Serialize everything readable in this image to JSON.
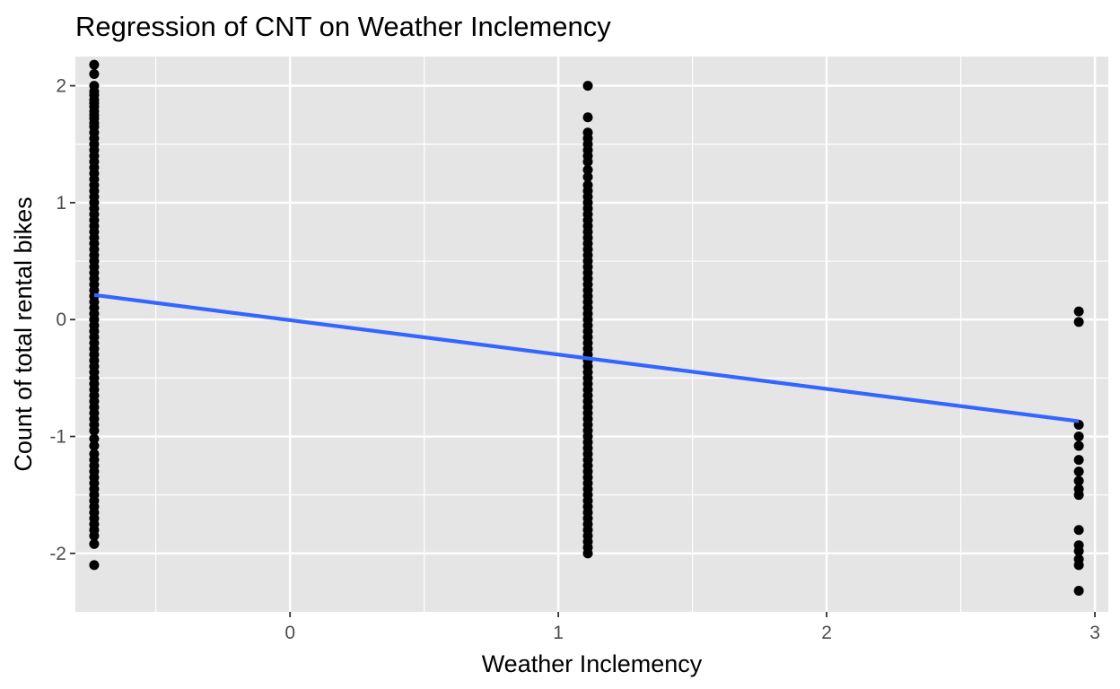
{
  "chart_data": {
    "type": "scatter",
    "title": "Regression of CNT on Weather Inclemency",
    "xlabel": "Weather Inclemency",
    "ylabel": "Count of total rental bikes",
    "xlim": [
      -0.8,
      3.05
    ],
    "ylim": [
      -2.5,
      2.25
    ],
    "x_ticks": [
      0,
      1,
      2,
      3
    ],
    "x_tick_labels": [
      "0",
      "1",
      "2",
      "3"
    ],
    "y_ticks": [
      -2,
      -1,
      0,
      1,
      2
    ],
    "y_tick_labels": [
      "-2",
      "-1",
      "0",
      "1",
      "2"
    ],
    "grid": true,
    "background": "#e5e5e5",
    "grid_color": "#ffffff",
    "point_color": "#000000",
    "line_color": "#3366ff",
    "series": [
      {
        "x_value": -0.73,
        "y_values": [
          2.18,
          2.1,
          2.0,
          1.95,
          1.92,
          1.88,
          1.85,
          1.82,
          1.78,
          1.75,
          1.72,
          1.68,
          1.65,
          1.6,
          1.55,
          1.5,
          1.45,
          1.4,
          1.35,
          1.3,
          1.25,
          1.2,
          1.15,
          1.1,
          1.05,
          1.0,
          0.95,
          0.9,
          0.85,
          0.8,
          0.75,
          0.7,
          0.65,
          0.6,
          0.55,
          0.5,
          0.45,
          0.4,
          0.35,
          0.3,
          0.25,
          0.2,
          0.15,
          0.1,
          0.05,
          0.0,
          -0.05,
          -0.1,
          -0.15,
          -0.2,
          -0.25,
          -0.3,
          -0.35,
          -0.4,
          -0.45,
          -0.5,
          -0.55,
          -0.6,
          -0.65,
          -0.7,
          -0.75,
          -0.8,
          -0.85,
          -0.9,
          -0.95,
          -1.02,
          -1.08,
          -1.15,
          -1.2,
          -1.25,
          -1.3,
          -1.35,
          -1.4,
          -1.45,
          -1.5,
          -1.55,
          -1.6,
          -1.65,
          -1.7,
          -1.75,
          -1.8,
          -1.85,
          -1.92,
          -2.1
        ]
      },
      {
        "x_value": 1.11,
        "y_values": [
          2.0,
          1.73,
          1.6,
          1.55,
          1.5,
          1.45,
          1.4,
          1.35,
          1.28,
          1.22,
          1.15,
          1.1,
          1.05,
          1.0,
          0.95,
          0.9,
          0.85,
          0.8,
          0.75,
          0.7,
          0.65,
          0.6,
          0.55,
          0.5,
          0.45,
          0.4,
          0.35,
          0.3,
          0.25,
          0.2,
          0.15,
          0.1,
          0.05,
          0.0,
          -0.05,
          -0.1,
          -0.15,
          -0.2,
          -0.25,
          -0.3,
          -0.35,
          -0.4,
          -0.45,
          -0.5,
          -0.55,
          -0.6,
          -0.65,
          -0.7,
          -0.75,
          -0.8,
          -0.85,
          -0.9,
          -0.95,
          -1.0,
          -1.05,
          -1.1,
          -1.15,
          -1.2,
          -1.25,
          -1.3,
          -1.35,
          -1.4,
          -1.45,
          -1.5,
          -1.55,
          -1.6,
          -1.65,
          -1.7,
          -1.75,
          -1.8,
          -1.85,
          -1.9,
          -1.95,
          -2.0
        ]
      },
      {
        "x_value": 2.94,
        "y_values": [
          0.07,
          -0.02,
          -0.9,
          -1.0,
          -1.08,
          -1.2,
          -1.3,
          -1.38,
          -1.45,
          -1.5,
          -1.8,
          -1.93,
          -1.98,
          -2.05,
          -2.1,
          -2.32
        ]
      }
    ],
    "regression_line": {
      "x": [
        -0.73,
        2.94
      ],
      "y": [
        0.21,
        -0.87
      ]
    }
  }
}
